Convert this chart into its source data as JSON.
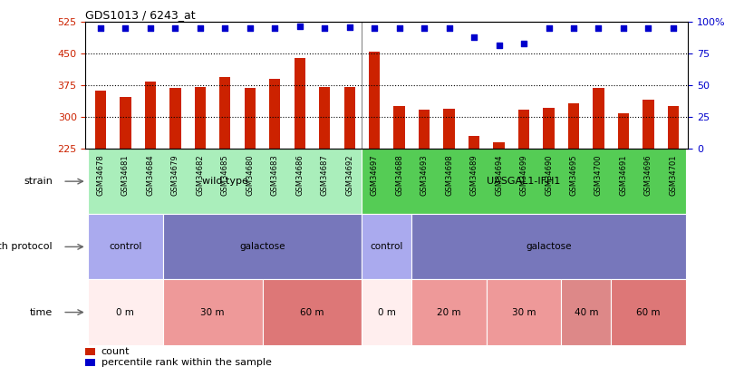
{
  "title": "GDS1013 / 6243_at",
  "samples": [
    "GSM34678",
    "GSM34681",
    "GSM34684",
    "GSM34679",
    "GSM34682",
    "GSM34685",
    "GSM34680",
    "GSM34683",
    "GSM34686",
    "GSM34687",
    "GSM34692",
    "GSM34697",
    "GSM34688",
    "GSM34693",
    "GSM34698",
    "GSM34689",
    "GSM34694",
    "GSM34699",
    "GSM34690",
    "GSM34695",
    "GSM34700",
    "GSM34691",
    "GSM34696",
    "GSM34701"
  ],
  "counts": [
    363,
    348,
    383,
    368,
    370,
    395,
    368,
    390,
    440,
    370,
    370,
    455,
    325,
    318,
    320,
    255,
    240,
    318,
    322,
    332,
    368,
    308,
    342,
    325
  ],
  "percentile_y": [
    510,
    510,
    510,
    510,
    510,
    510,
    510,
    510,
    515,
    510,
    512,
    510,
    510,
    510,
    510,
    490,
    470,
    475,
    510,
    510,
    510,
    510,
    510,
    510
  ],
  "ymin": 225,
  "ymax": 525,
  "yticks": [
    225,
    300,
    375,
    450,
    525
  ],
  "bar_color": "#cc2200",
  "dot_color": "#0000cc",
  "background_color": "#ffffff",
  "strain_segs": [
    {
      "start": 0,
      "end": 11,
      "color": "#aaeebb",
      "label": "wild type"
    },
    {
      "start": 11,
      "end": 24,
      "color": "#55cc55",
      "label": "UASGAL1-IFH1"
    }
  ],
  "growth_segs": [
    {
      "label": "control",
      "start": 0,
      "end": 3,
      "color": "#aaaaee"
    },
    {
      "label": "galactose",
      "start": 3,
      "end": 11,
      "color": "#7777bb"
    },
    {
      "label": "control",
      "start": 11,
      "end": 13,
      "color": "#aaaaee"
    },
    {
      "label": "galactose",
      "start": 13,
      "end": 24,
      "color": "#7777bb"
    }
  ],
  "time_segs": [
    {
      "label": "0 m",
      "start": 0,
      "end": 3,
      "color": "#ffeeee"
    },
    {
      "label": "30 m",
      "start": 3,
      "end": 7,
      "color": "#ee9999"
    },
    {
      "label": "60 m",
      "start": 7,
      "end": 11,
      "color": "#dd7777"
    },
    {
      "label": "0 m",
      "start": 11,
      "end": 13,
      "color": "#ffeeee"
    },
    {
      "label": "20 m",
      "start": 13,
      "end": 16,
      "color": "#ee9999"
    },
    {
      "label": "30 m",
      "start": 16,
      "end": 19,
      "color": "#ee9999"
    },
    {
      "label": "40 m",
      "start": 19,
      "end": 21,
      "color": "#dd8888"
    },
    {
      "label": "60 m",
      "start": 21,
      "end": 24,
      "color": "#dd7777"
    }
  ]
}
